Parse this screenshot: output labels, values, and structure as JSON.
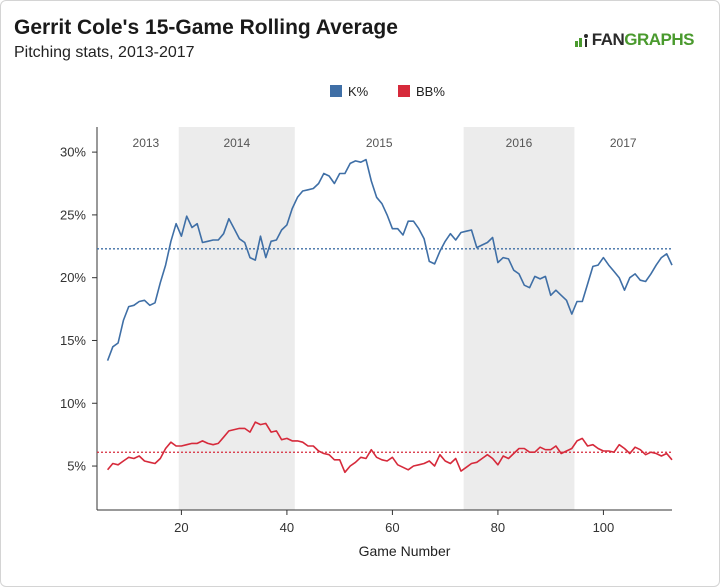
{
  "header": {
    "title": "Gerrit Cole's 15-Game Rolling Average",
    "subtitle": "Pitching stats, 2013-2017",
    "logo_fan": "FAN",
    "logo_graphs": "GRAPHS",
    "logo_icon": "fangraphs-logo-icon"
  },
  "chart_data": {
    "type": "line",
    "xlabel": "Game Number",
    "ylabel": "",
    "xlim": [
      4,
      113
    ],
    "ylim": [
      1.5,
      32
    ],
    "x_ticks": [
      20,
      40,
      60,
      80,
      100
    ],
    "x_tick_labels": [
      "20",
      "40",
      "60",
      "80",
      "100"
    ],
    "y_ticks": [
      5,
      10,
      15,
      20,
      25,
      30
    ],
    "y_tick_labels": [
      "5%",
      "10%",
      "15%",
      "20%",
      "25%",
      "30%"
    ],
    "legend_position": "top-center",
    "grid": false,
    "seasons": [
      {
        "label": "2013",
        "start": 4,
        "end": 19.5,
        "shaded": false
      },
      {
        "label": "2014",
        "start": 19.5,
        "end": 41.5,
        "shaded": true
      },
      {
        "label": "2015",
        "start": 41.5,
        "end": 73.5,
        "shaded": false
      },
      {
        "label": "2016",
        "start": 73.5,
        "end": 94.5,
        "shaded": true
      },
      {
        "label": "2017",
        "start": 94.5,
        "end": 113,
        "shaded": false
      }
    ],
    "series": [
      {
        "name": "K%",
        "color": "#3f6fa6",
        "average": 22.3,
        "values": [
          [
            6,
            13.4
          ],
          [
            7,
            14.5
          ],
          [
            8,
            14.8
          ],
          [
            9,
            16.6
          ],
          [
            10,
            17.7
          ],
          [
            11,
            17.8
          ],
          [
            12,
            18.1
          ],
          [
            13,
            18.2
          ],
          [
            14,
            17.8
          ],
          [
            15,
            18.0
          ],
          [
            16,
            19.6
          ],
          [
            17,
            21.0
          ],
          [
            18,
            22.9
          ],
          [
            19,
            24.3
          ],
          [
            20,
            23.3
          ],
          [
            21,
            24.9
          ],
          [
            22,
            24.0
          ],
          [
            23,
            24.3
          ],
          [
            24,
            22.8
          ],
          [
            25,
            22.9
          ],
          [
            26,
            23.0
          ],
          [
            27,
            23.0
          ],
          [
            28,
            23.5
          ],
          [
            29,
            24.7
          ],
          [
            30,
            23.9
          ],
          [
            31,
            23.1
          ],
          [
            32,
            22.8
          ],
          [
            33,
            21.6
          ],
          [
            34,
            21.4
          ],
          [
            35,
            23.3
          ],
          [
            36,
            21.6
          ],
          [
            37,
            22.9
          ],
          [
            38,
            23.0
          ],
          [
            39,
            23.8
          ],
          [
            40,
            24.2
          ],
          [
            41,
            25.5
          ],
          [
            42,
            26.4
          ],
          [
            43,
            26.9
          ],
          [
            44,
            27.0
          ],
          [
            45,
            27.1
          ],
          [
            46,
            27.5
          ],
          [
            47,
            28.3
          ],
          [
            48,
            28.1
          ],
          [
            49,
            27.5
          ],
          [
            50,
            28.3
          ],
          [
            51,
            28.3
          ],
          [
            52,
            29.1
          ],
          [
            53,
            29.3
          ],
          [
            54,
            29.2
          ],
          [
            55,
            29.4
          ],
          [
            56,
            27.7
          ],
          [
            57,
            26.4
          ],
          [
            58,
            25.9
          ],
          [
            59,
            25.0
          ],
          [
            60,
            23.9
          ],
          [
            61,
            23.9
          ],
          [
            62,
            23.4
          ],
          [
            63,
            24.5
          ],
          [
            64,
            24.5
          ],
          [
            65,
            23.9
          ],
          [
            66,
            23.1
          ],
          [
            67,
            21.3
          ],
          [
            68,
            21.1
          ],
          [
            69,
            22.1
          ],
          [
            70,
            22.9
          ],
          [
            71,
            23.5
          ],
          [
            72,
            23.0
          ],
          [
            73,
            23.6
          ],
          [
            74,
            23.7
          ],
          [
            75,
            23.8
          ],
          [
            76,
            22.4
          ],
          [
            77,
            22.6
          ],
          [
            78,
            22.8
          ],
          [
            79,
            23.2
          ],
          [
            80,
            21.2
          ],
          [
            81,
            21.6
          ],
          [
            82,
            21.5
          ],
          [
            83,
            20.6
          ],
          [
            84,
            20.3
          ],
          [
            85,
            19.4
          ],
          [
            86,
            19.2
          ],
          [
            87,
            20.1
          ],
          [
            88,
            19.9
          ],
          [
            89,
            20.1
          ],
          [
            90,
            18.6
          ],
          [
            91,
            19.0
          ],
          [
            92,
            18.6
          ],
          [
            93,
            18.2
          ],
          [
            94,
            17.1
          ],
          [
            95,
            18.1
          ],
          [
            96,
            18.1
          ],
          [
            97,
            19.5
          ],
          [
            98,
            20.9
          ],
          [
            99,
            21.0
          ],
          [
            100,
            21.6
          ],
          [
            101,
            21.0
          ],
          [
            102,
            20.5
          ],
          [
            103,
            20.0
          ],
          [
            104,
            19.0
          ],
          [
            105,
            20.0
          ],
          [
            106,
            20.3
          ],
          [
            107,
            19.8
          ],
          [
            108,
            19.7
          ],
          [
            109,
            20.3
          ],
          [
            110,
            21.0
          ],
          [
            111,
            21.6
          ],
          [
            112,
            21.9
          ],
          [
            113,
            21.0
          ]
        ]
      },
      {
        "name": "BB%",
        "color": "#d62a3b",
        "average": 6.1,
        "values": [
          [
            6,
            4.7
          ],
          [
            7,
            5.2
          ],
          [
            8,
            5.1
          ],
          [
            9,
            5.4
          ],
          [
            10,
            5.7
          ],
          [
            11,
            5.6
          ],
          [
            12,
            5.8
          ],
          [
            13,
            5.4
          ],
          [
            14,
            5.3
          ],
          [
            15,
            5.2
          ],
          [
            16,
            5.6
          ],
          [
            17,
            6.4
          ],
          [
            18,
            6.9
          ],
          [
            19,
            6.6
          ],
          [
            20,
            6.6
          ],
          [
            21,
            6.7
          ],
          [
            22,
            6.8
          ],
          [
            23,
            6.8
          ],
          [
            24,
            7.0
          ],
          [
            25,
            6.8
          ],
          [
            26,
            6.7
          ],
          [
            27,
            6.8
          ],
          [
            28,
            7.3
          ],
          [
            29,
            7.8
          ],
          [
            30,
            7.9
          ],
          [
            31,
            8.0
          ],
          [
            32,
            8.0
          ],
          [
            33,
            7.7
          ],
          [
            34,
            8.5
          ],
          [
            35,
            8.3
          ],
          [
            36,
            8.4
          ],
          [
            37,
            7.7
          ],
          [
            38,
            7.8
          ],
          [
            39,
            7.1
          ],
          [
            40,
            7.2
          ],
          [
            41,
            7.0
          ],
          [
            42,
            7.0
          ],
          [
            43,
            6.9
          ],
          [
            44,
            6.6
          ],
          [
            45,
            6.6
          ],
          [
            46,
            6.2
          ],
          [
            47,
            6.0
          ],
          [
            48,
            5.9
          ],
          [
            49,
            5.5
          ],
          [
            50,
            5.5
          ],
          [
            51,
            4.5
          ],
          [
            52,
            5.0
          ],
          [
            53,
            5.3
          ],
          [
            54,
            5.7
          ],
          [
            55,
            5.6
          ],
          [
            56,
            6.3
          ],
          [
            57,
            5.7
          ],
          [
            58,
            5.5
          ],
          [
            59,
            5.4
          ],
          [
            60,
            5.7
          ],
          [
            61,
            5.1
          ],
          [
            62,
            4.9
          ],
          [
            63,
            4.7
          ],
          [
            64,
            5.0
          ],
          [
            65,
            5.1
          ],
          [
            66,
            5.2
          ],
          [
            67,
            5.4
          ],
          [
            68,
            5.0
          ],
          [
            69,
            5.9
          ],
          [
            70,
            5.4
          ],
          [
            71,
            5.2
          ],
          [
            72,
            5.6
          ],
          [
            73,
            4.6
          ],
          [
            74,
            4.9
          ],
          [
            75,
            5.2
          ],
          [
            76,
            5.3
          ],
          [
            77,
            5.6
          ],
          [
            78,
            5.9
          ],
          [
            79,
            5.6
          ],
          [
            80,
            5.1
          ],
          [
            81,
            5.8
          ],
          [
            82,
            5.6
          ],
          [
            83,
            6.0
          ],
          [
            84,
            6.4
          ],
          [
            85,
            6.4
          ],
          [
            86,
            6.1
          ],
          [
            87,
            6.1
          ],
          [
            88,
            6.5
          ],
          [
            89,
            6.3
          ],
          [
            90,
            6.3
          ],
          [
            91,
            6.6
          ],
          [
            92,
            6.0
          ],
          [
            93,
            6.2
          ],
          [
            94,
            6.4
          ],
          [
            95,
            7.0
          ],
          [
            96,
            7.2
          ],
          [
            97,
            6.6
          ],
          [
            98,
            6.7
          ],
          [
            99,
            6.4
          ],
          [
            100,
            6.2
          ],
          [
            101,
            6.2
          ],
          [
            102,
            6.1
          ],
          [
            103,
            6.7
          ],
          [
            104,
            6.4
          ],
          [
            105,
            6.0
          ],
          [
            106,
            6.5
          ],
          [
            107,
            6.3
          ],
          [
            108,
            5.9
          ],
          [
            109,
            6.1
          ],
          [
            110,
            6.0
          ],
          [
            111,
            5.8
          ],
          [
            112,
            6.0
          ],
          [
            113,
            5.5
          ]
        ]
      }
    ]
  }
}
